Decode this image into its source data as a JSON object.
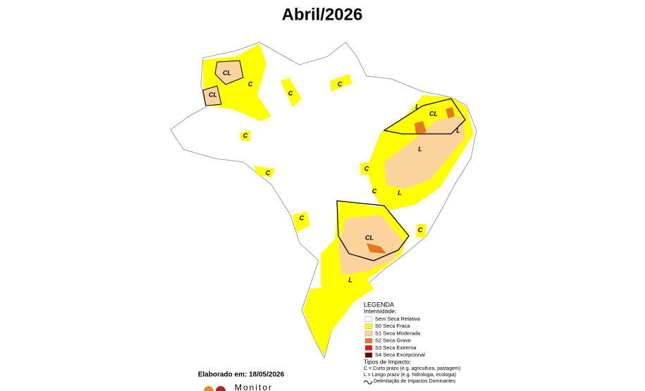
{
  "header": {
    "subtitle": "Abril/2026"
  },
  "legend": {
    "heading": "LEGENDA",
    "intensity_title": "Intensidade:",
    "items": [
      {
        "label": "Sem Seca Relativa",
        "color": "#ffffff"
      },
      {
        "label": "S0 Seca Fraca",
        "color": "#ffff00"
      },
      {
        "label": "S1 Seca Moderada",
        "color": "#fcd39c"
      },
      {
        "label": "S2 Seca Grave",
        "color": "#e8761e"
      },
      {
        "label": "S3 Seca Extrema",
        "color": "#e31a1c"
      },
      {
        "label": "S4 Seca Excepcional",
        "color": "#730000"
      }
    ],
    "impact_title": "Tipos de Impacto:",
    "impact_items": [
      "C = Curto prazo (e.g. agricultura, pastagem)",
      "L = Longo prazo (e.g. hidrologia, ecologia)",
      "Delimitação de Impactos Dominantes"
    ]
  },
  "footer": {
    "elaborated": "Elaborado em: 18/05/2026",
    "logo": "Monitor"
  },
  "map_labels": [
    "CL",
    "C",
    "CL",
    "C",
    "C",
    "C",
    "C",
    "L",
    "CL",
    "L",
    "L",
    "C",
    "C",
    "L",
    "C",
    "C",
    "CL",
    "L"
  ]
}
